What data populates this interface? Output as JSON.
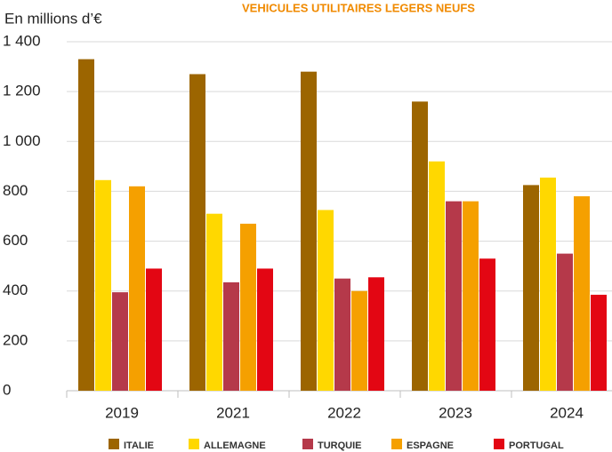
{
  "chart_data": {
    "type": "bar",
    "title": "VEHICULES UTILITAIRES LEGERS NEUFS",
    "subtitle": "En millions d’€",
    "categories": [
      "2019",
      "2021",
      "2022",
      "2023",
      "2024"
    ],
    "series": [
      {
        "name": "ITALIE",
        "color": "#9c6500",
        "values": [
          1330,
          1270,
          1280,
          1160,
          825
        ]
      },
      {
        "name": "ALLEMAGNE",
        "color": "#ffd800",
        "values": [
          845,
          710,
          725,
          920,
          855
        ]
      },
      {
        "name": "TURQUIE",
        "color": "#b5394a",
        "values": [
          395,
          435,
          450,
          760,
          550
        ]
      },
      {
        "name": "ESPAGNE",
        "color": "#f5a000",
        "values": [
          820,
          670,
          400,
          760,
          780
        ]
      },
      {
        "name": "PORTUGAL",
        "color": "#e30613",
        "values": [
          490,
          490,
          455,
          530,
          385
        ]
      }
    ],
    "ylim": [
      0,
      1400
    ],
    "yticks": [
      0,
      200,
      400,
      600,
      800,
      {
        "value": 1000,
        "label": "1 000"
      },
      {
        "value": 1200,
        "label": "1 200"
      },
      {
        "value": 1400,
        "label": "1 400"
      }
    ],
    "grid": true
  }
}
